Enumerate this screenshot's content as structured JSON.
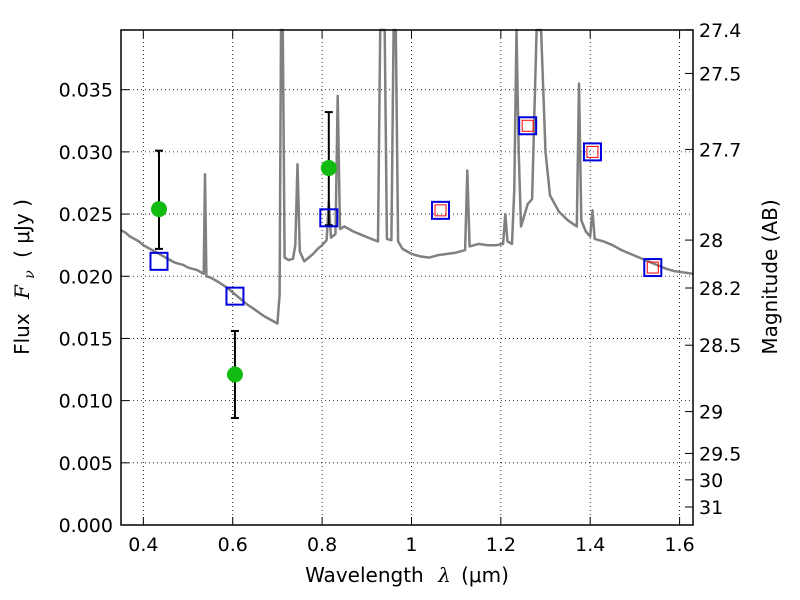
{
  "chart_data": {
    "type": "scatter",
    "x_axis": {
      "label_text": "Wavelength",
      "label_symbol": "λ",
      "label_unit": "(μm)",
      "lim": [
        0.35,
        1.63
      ],
      "ticks": [
        0.4,
        0.6,
        0.8,
        1.0,
        1.2,
        1.4,
        1.6
      ],
      "tick_labels": [
        "0.4",
        "0.6",
        "0.8",
        "1",
        "1.2",
        "1.4",
        "1.6"
      ]
    },
    "y_axis": {
      "label_text": "Flux",
      "label_symbol": "F",
      "label_subscript": "ν",
      "label_unit": "( μJy )",
      "lim": [
        0.0,
        0.0398
      ],
      "ticks": [
        0.0,
        0.005,
        0.01,
        0.015,
        0.02,
        0.025,
        0.03,
        0.035
      ],
      "tick_labels": [
        "0.000",
        "0.005",
        "0.010",
        "0.015",
        "0.020",
        "0.025",
        "0.030",
        "0.035"
      ]
    },
    "y2_axis": {
      "label": "Magnitude (AB)",
      "ticks": [
        27.4,
        27.5,
        27.7,
        28,
        28.2,
        28.5,
        29,
        29.5,
        30,
        31
      ],
      "tick_labels": [
        "27.4",
        "27.5",
        "27.7",
        "28",
        "28.2",
        "28.5",
        "29",
        "29.5",
        "30",
        "31"
      ]
    },
    "grid": true,
    "series": [
      {
        "kind": "line",
        "color": "#808080",
        "points": [
          [
            0.35,
            0.0237
          ],
          [
            0.36,
            0.0235
          ],
          [
            0.37,
            0.0232
          ],
          [
            0.38,
            0.023
          ],
          [
            0.39,
            0.0228
          ],
          [
            0.4,
            0.0225
          ],
          [
            0.41,
            0.0223
          ],
          [
            0.42,
            0.0221
          ],
          [
            0.43,
            0.0219
          ],
          [
            0.44,
            0.0217
          ],
          [
            0.45,
            0.0215
          ],
          [
            0.46,
            0.0213
          ],
          [
            0.47,
            0.0211
          ],
          [
            0.48,
            0.021
          ],
          [
            0.49,
            0.0209
          ],
          [
            0.5,
            0.0207
          ],
          [
            0.51,
            0.0206
          ],
          [
            0.52,
            0.0205
          ],
          [
            0.53,
            0.0203
          ],
          [
            0.535,
            0.0202
          ],
          [
            0.538,
            0.0282
          ],
          [
            0.541,
            0.02
          ],
          [
            0.55,
            0.0199
          ],
          [
            0.57,
            0.0195
          ],
          [
            0.59,
            0.019
          ],
          [
            0.61,
            0.0184
          ],
          [
            0.63,
            0.0178
          ],
          [
            0.65,
            0.0173
          ],
          [
            0.67,
            0.0168
          ],
          [
            0.69,
            0.0164
          ],
          [
            0.7,
            0.0162
          ],
          [
            0.705,
            0.0185
          ],
          [
            0.708,
            0.0398
          ],
          [
            0.712,
            0.0398
          ],
          [
            0.716,
            0.0215
          ],
          [
            0.725,
            0.0213
          ],
          [
            0.735,
            0.0214
          ],
          [
            0.74,
            0.0225
          ],
          [
            0.745,
            0.029
          ],
          [
            0.75,
            0.022
          ],
          [
            0.76,
            0.0212
          ],
          [
            0.77,
            0.0215
          ],
          [
            0.78,
            0.0218
          ],
          [
            0.79,
            0.0222
          ],
          [
            0.8,
            0.0225
          ],
          [
            0.81,
            0.0229
          ],
          [
            0.815,
            0.026
          ],
          [
            0.82,
            0.0231
          ],
          [
            0.83,
            0.0234
          ],
          [
            0.835,
            0.0345
          ],
          [
            0.84,
            0.0238
          ],
          [
            0.85,
            0.024
          ],
          [
            0.87,
            0.0236
          ],
          [
            0.89,
            0.0233
          ],
          [
            0.91,
            0.023
          ],
          [
            0.925,
            0.0228
          ],
          [
            0.93,
            0.0398
          ],
          [
            0.94,
            0.0398
          ],
          [
            0.945,
            0.023
          ],
          [
            0.955,
            0.0229
          ],
          [
            0.96,
            0.0398
          ],
          [
            0.965,
            0.0398
          ],
          [
            0.97,
            0.0228
          ],
          [
            0.98,
            0.0222
          ],
          [
            1.0,
            0.0218
          ],
          [
            1.02,
            0.0216
          ],
          [
            1.04,
            0.0215
          ],
          [
            1.06,
            0.0217
          ],
          [
            1.08,
            0.0218
          ],
          [
            1.1,
            0.0219
          ],
          [
            1.12,
            0.0221
          ],
          [
            1.125,
            0.0285
          ],
          [
            1.13,
            0.0224
          ],
          [
            1.15,
            0.0226
          ],
          [
            1.17,
            0.0225
          ],
          [
            1.19,
            0.0225
          ],
          [
            1.205,
            0.0226
          ],
          [
            1.21,
            0.025
          ],
          [
            1.215,
            0.0228
          ],
          [
            1.225,
            0.0226
          ],
          [
            1.23,
            0.027
          ],
          [
            1.235,
            0.0398
          ],
          [
            1.24,
            0.03
          ],
          [
            1.245,
            0.024
          ],
          [
            1.26,
            0.0258
          ],
          [
            1.27,
            0.0262
          ],
          [
            1.28,
            0.0398
          ],
          [
            1.29,
            0.0398
          ],
          [
            1.3,
            0.03
          ],
          [
            1.31,
            0.0265
          ],
          [
            1.33,
            0.0252
          ],
          [
            1.35,
            0.0245
          ],
          [
            1.37,
            0.024
          ],
          [
            1.375,
            0.0355
          ],
          [
            1.38,
            0.0245
          ],
          [
            1.39,
            0.0236
          ],
          [
            1.4,
            0.0232
          ],
          [
            1.405,
            0.0253
          ],
          [
            1.41,
            0.023
          ],
          [
            1.43,
            0.0228
          ],
          [
            1.45,
            0.0225
          ],
          [
            1.47,
            0.0221
          ],
          [
            1.49,
            0.0218
          ],
          [
            1.51,
            0.0215
          ],
          [
            1.53,
            0.0212
          ],
          [
            1.55,
            0.0209
          ],
          [
            1.57,
            0.0206
          ],
          [
            1.59,
            0.0204
          ],
          [
            1.61,
            0.0203
          ],
          [
            1.63,
            0.0202
          ]
        ]
      },
      {
        "kind": "points",
        "marker": "filled-circle",
        "color": "#11bb11",
        "errorbar_color": "#000000",
        "points": [
          {
            "x": 0.435,
            "y": 0.0254,
            "ylo": 0.0222,
            "yhi": 0.0301
          },
          {
            "x": 0.605,
            "y": 0.0121,
            "ylo": 0.0086,
            "yhi": 0.0156
          },
          {
            "x": 0.815,
            "y": 0.0287,
            "ylo": 0.0241,
            "yhi": 0.0332
          }
        ]
      },
      {
        "kind": "points",
        "marker": "open-square",
        "color": "#0000dd",
        "points": [
          {
            "x": 0.435,
            "y": 0.0212
          },
          {
            "x": 0.605,
            "y": 0.0184
          },
          {
            "x": 0.815,
            "y": 0.0247
          },
          {
            "x": 1.065,
            "y": 0.0253
          },
          {
            "x": 1.26,
            "y": 0.0321
          },
          {
            "x": 1.405,
            "y": 0.03
          },
          {
            "x": 1.54,
            "y": 0.0207
          }
        ]
      },
      {
        "kind": "points",
        "marker": "open-square-small",
        "color": "#ff0000",
        "points": [
          {
            "x": 1.065,
            "y": 0.0253
          },
          {
            "x": 1.26,
            "y": 0.0321
          },
          {
            "x": 1.405,
            "y": 0.03
          },
          {
            "x": 1.54,
            "y": 0.0207
          }
        ]
      }
    ]
  }
}
